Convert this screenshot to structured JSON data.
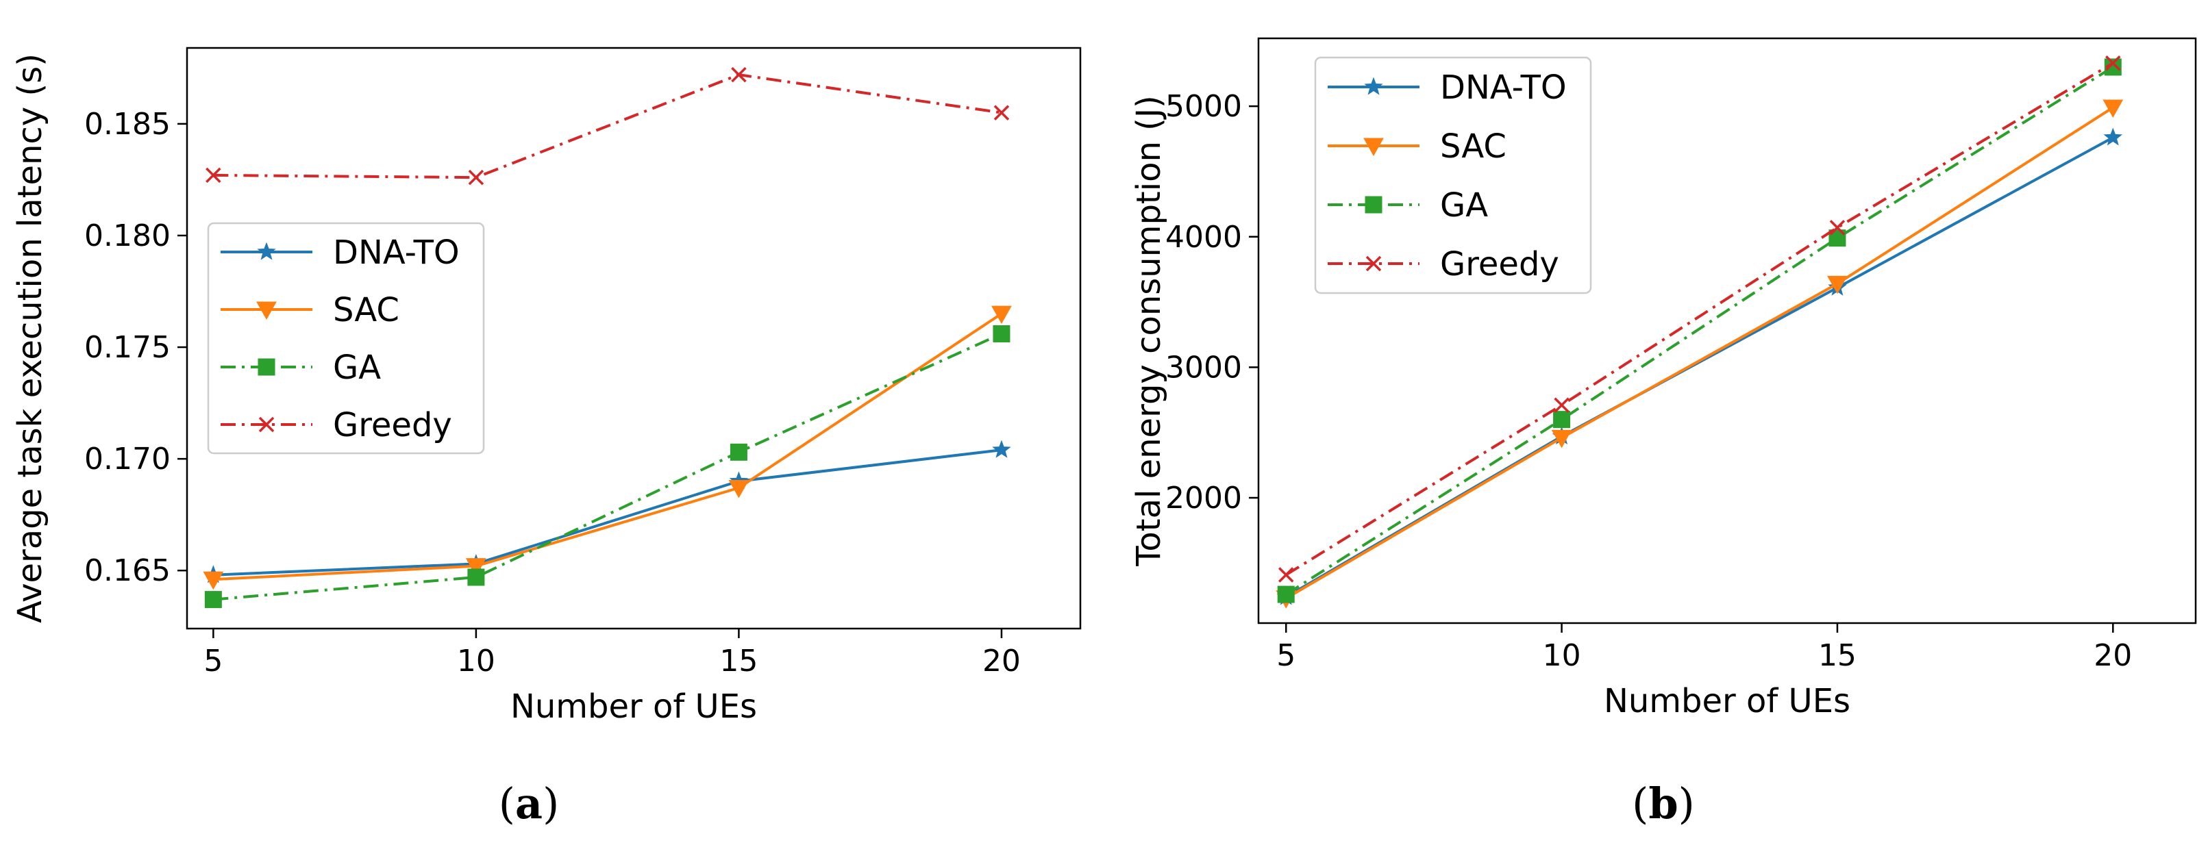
{
  "chart_data": [
    {
      "type": "line",
      "caption": "(a)",
      "caption_parts": [
        "(",
        "a",
        ")"
      ],
      "xlabel": "Number of UEs",
      "ylabel": "Average task execution latency (s)",
      "x": [
        5,
        10,
        15,
        20
      ],
      "xticks": [
        "5",
        "10",
        "15",
        "20"
      ],
      "xlim": [
        4.5,
        21.5
      ],
      "yticks": [
        "0.165",
        "0.170",
        "0.175",
        "0.180",
        "0.185"
      ],
      "ytick_values": [
        0.165,
        0.17,
        0.175,
        0.18,
        0.185
      ],
      "ylim": [
        0.1624,
        0.1884
      ],
      "legend_location": "center-left",
      "series": [
        {
          "name": "DNA-TO",
          "values": [
            0.1648,
            0.1653,
            0.169,
            0.1704
          ],
          "color": "#1f77b4",
          "linestyle": "solid",
          "marker": "star"
        },
        {
          "name": "SAC",
          "values": [
            0.1646,
            0.1652,
            0.1687,
            0.1765
          ],
          "color": "#ff7f0e",
          "linestyle": "solid",
          "marker": "triangle-down"
        },
        {
          "name": "GA",
          "values": [
            0.1637,
            0.1647,
            0.1703,
            0.1756
          ],
          "color": "#2ca02c",
          "linestyle": "dashdot",
          "marker": "square"
        },
        {
          "name": "Greedy",
          "values": [
            0.1827,
            0.1826,
            0.1872,
            0.1855
          ],
          "color": "#d62728",
          "linestyle": "dashdot",
          "marker": "x"
        }
      ]
    },
    {
      "type": "line",
      "caption": "(b)",
      "caption_parts": [
        "(",
        "b",
        ")"
      ],
      "xlabel": "Number of UEs",
      "ylabel": "Total energy consumption (J)",
      "x": [
        5,
        10,
        15,
        20
      ],
      "xticks": [
        "5",
        "10",
        "15",
        "20"
      ],
      "xlim": [
        4.5,
        21.5
      ],
      "yticks": [
        "2000",
        "3000",
        "4000",
        "5000"
      ],
      "ytick_values": [
        2000,
        3000,
        4000,
        5000
      ],
      "ylim": [
        1040,
        5520
      ],
      "legend_location": "upper-left",
      "series": [
        {
          "name": "DNA-TO",
          "values": [
            1240,
            2470,
            3610,
            4760
          ],
          "color": "#1f77b4",
          "linestyle": "solid",
          "marker": "star"
        },
        {
          "name": "SAC",
          "values": [
            1230,
            2460,
            3640,
            4990
          ],
          "color": "#ff7f0e",
          "linestyle": "solid",
          "marker": "triangle-down"
        },
        {
          "name": "GA",
          "values": [
            1260,
            2600,
            3990,
            5300
          ],
          "color": "#2ca02c",
          "linestyle": "dashdot",
          "marker": "square"
        },
        {
          "name": "Greedy",
          "values": [
            1410,
            2710,
            4070,
            5330
          ],
          "color": "#d62728",
          "linestyle": "dashdot",
          "marker": "x"
        }
      ]
    }
  ]
}
